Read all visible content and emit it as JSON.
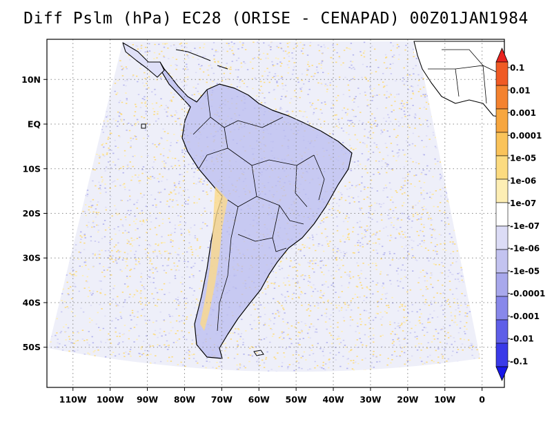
{
  "title": "Diff Pslm (hPa) EC28 (ORISE - CENAPAD) 00Z01JAN1984",
  "map": {
    "region": "South America",
    "lon_range": [
      -117,
      6
    ],
    "lat_range": [
      -59,
      19
    ],
    "grid": "dotted",
    "x_ticks": [
      {
        "value": -110,
        "label": "110W"
      },
      {
        "value": -100,
        "label": "100W"
      },
      {
        "value": -90,
        "label": "90W"
      },
      {
        "value": -80,
        "label": "80W"
      },
      {
        "value": -70,
        "label": "70W"
      },
      {
        "value": -60,
        "label": "60W"
      },
      {
        "value": -50,
        "label": "50W"
      },
      {
        "value": -40,
        "label": "40W"
      },
      {
        "value": -30,
        "label": "30W"
      },
      {
        "value": -20,
        "label": "20W"
      },
      {
        "value": -10,
        "label": "10W"
      },
      {
        "value": 0,
        "label": "0"
      }
    ],
    "y_ticks": [
      {
        "value": 10,
        "label": "10N"
      },
      {
        "value": 0,
        "label": "EQ"
      },
      {
        "value": -10,
        "label": "10S"
      },
      {
        "value": -20,
        "label": "20S"
      },
      {
        "value": -30,
        "label": "30S"
      },
      {
        "value": -40,
        "label": "40S"
      },
      {
        "value": -50,
        "label": "50S"
      }
    ]
  },
  "colorbar": {
    "labels": [
      "0.1",
      "0.01",
      "0.001",
      "0.0001",
      "1e-05",
      "1e-06",
      "1e-07",
      "-1e-07",
      "-1e-06",
      "-1e-05",
      "-0.0001",
      "-0.001",
      "-0.01",
      "-0.1"
    ],
    "colors": [
      "#e8231f",
      "#f05a24",
      "#f4822f",
      "#f7a63f",
      "#fac35a",
      "#fcdb80",
      "#fdeeb4",
      "#ffffff",
      "#dcdcf6",
      "#c3c3f0",
      "#a8a8ec",
      "#8888ea",
      "#5f5fe8",
      "#3a3ae8",
      "#1717e8"
    ]
  }
}
